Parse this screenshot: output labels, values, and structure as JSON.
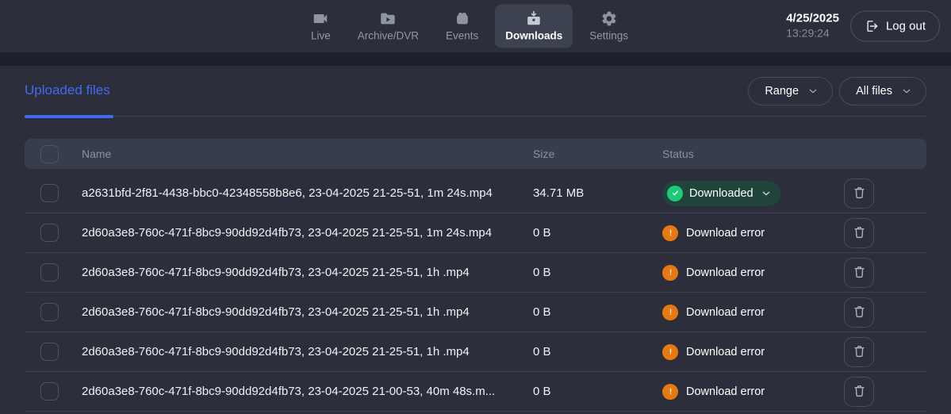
{
  "topbar": {
    "tabs": [
      {
        "label": "Live",
        "icon": "videocam-icon",
        "active": false
      },
      {
        "label": "Archive/DVR",
        "icon": "folder-play-icon",
        "active": false
      },
      {
        "label": "Events",
        "icon": "film-camera-icon",
        "active": false
      },
      {
        "label": "Downloads",
        "icon": "download-tray-icon",
        "active": true
      },
      {
        "label": "Settings",
        "icon": "gear-icon",
        "active": false
      }
    ],
    "date": "4/25/2025",
    "time": "13:29:24",
    "logout": {
      "label": "Log out",
      "icon": "logout-icon"
    }
  },
  "page": {
    "active_tab": "Uploaded files",
    "filters": [
      {
        "label": "Range",
        "icon": "chevron-down-icon"
      },
      {
        "label": "All files",
        "icon": "chevron-down-icon"
      }
    ]
  },
  "table": {
    "headers": {
      "name": "Name",
      "size": "Size",
      "status": "Status"
    },
    "rows": [
      {
        "name": "a2631bfd-2f81-4438-bbc0-42348558b8e6, 23-04-2025 21-25-51, 1m 24s.mp4",
        "size": "34.71 MB",
        "status": "Downloaded",
        "status_type": "success"
      },
      {
        "name": "2d60a3e8-760c-471f-8bc9-90dd92d4fb73, 23-04-2025 21-25-51, 1m 24s.mp4",
        "size": "0 B",
        "status": "Download error",
        "status_type": "error"
      },
      {
        "name": "2d60a3e8-760c-471f-8bc9-90dd92d4fb73, 23-04-2025 21-25-51, 1h .mp4",
        "size": "0 B",
        "status": "Download error",
        "status_type": "error"
      },
      {
        "name": "2d60a3e8-760c-471f-8bc9-90dd92d4fb73, 23-04-2025 21-25-51, 1h .mp4",
        "size": "0 B",
        "status": "Download error",
        "status_type": "error"
      },
      {
        "name": "2d60a3e8-760c-471f-8bc9-90dd92d4fb73, 23-04-2025 21-25-51, 1h .mp4",
        "size": "0 B",
        "status": "Download error",
        "status_type": "error"
      },
      {
        "name": "2d60a3e8-760c-471f-8bc9-90dd92d4fb73, 23-04-2025 21-00-53, 40m 48s.m...",
        "size": "0 B",
        "status": "Download error",
        "status_type": "error"
      }
    ]
  },
  "colors": {
    "accent_blue": "#3e6cf0",
    "success_green": "#1ec977",
    "success_badge_bg": "#20433c",
    "error_orange": "#e6790f"
  }
}
